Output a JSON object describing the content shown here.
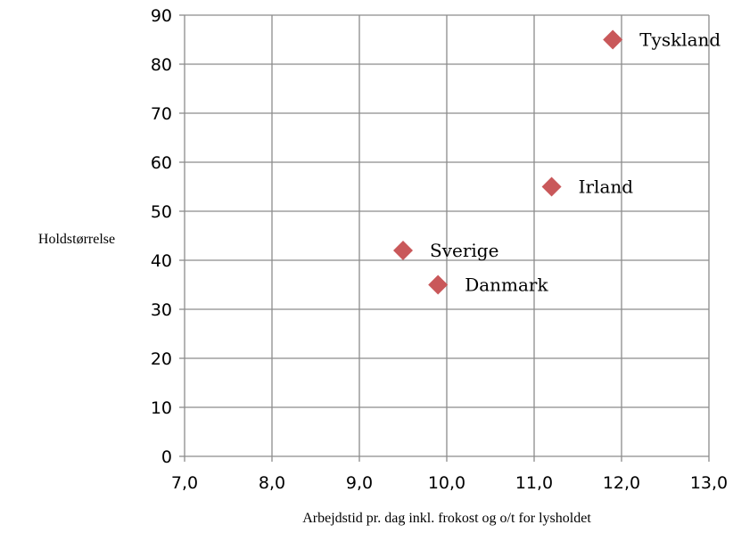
{
  "chart_data": {
    "type": "scatter",
    "title": "",
    "xlabel": "Arbejdstid pr. dag inkl. frokost og o/t for lysholdet",
    "ylabel": "Holdstørrelse",
    "xlim": [
      7.0,
      13.0
    ],
    "ylim": [
      0,
      90
    ],
    "x_ticks": [
      "7,0",
      "8,0",
      "9,0",
      "10,0",
      "11,0",
      "12,0",
      "13,0"
    ],
    "y_ticks": [
      "0",
      "10",
      "20",
      "30",
      "40",
      "50",
      "60",
      "70",
      "80",
      "90"
    ],
    "grid": true,
    "marker": "diamond",
    "marker_color": "#c9585a",
    "points": [
      {
        "label": "Tyskland",
        "x": 11.9,
        "y": 85
      },
      {
        "label": "Irland",
        "x": 11.2,
        "y": 55
      },
      {
        "label": "Sverige",
        "x": 9.5,
        "y": 42
      },
      {
        "label": "Danmark",
        "x": 9.9,
        "y": 35
      }
    ]
  }
}
